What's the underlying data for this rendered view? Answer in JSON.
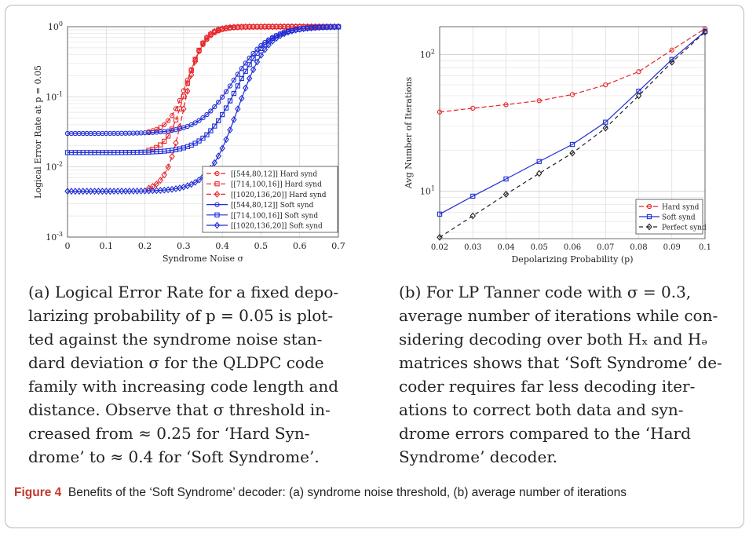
{
  "chart_data": [
    {
      "type": "line",
      "ylabel": "Logical Error Rate at p = 0.05",
      "xlabel": "Syndrome Noise σ",
      "xlim": [
        0,
        0.7
      ],
      "ylim": [
        0.001,
        1
      ],
      "yscale": "log",
      "x_ticks": [
        "0",
        "0.1",
        "0.2",
        "0.3",
        "0.4",
        "0.5",
        "0.6",
        "0.7"
      ],
      "y_ticks": [
        "10^-3",
        "10^-2",
        "10^-1",
        "10^0"
      ],
      "grid": true,
      "legend_position": "lower-right",
      "x": [
        0.0,
        0.02,
        0.04,
        0.06,
        0.08,
        0.1,
        0.12,
        0.14,
        0.16,
        0.18,
        0.2,
        0.22,
        0.24,
        0.26,
        0.28,
        0.3,
        0.32,
        0.34,
        0.36,
        0.38,
        0.4,
        0.42,
        0.44,
        0.46,
        0.48,
        0.5,
        0.52,
        0.54,
        0.56,
        0.58,
        0.6,
        0.62,
        0.64,
        0.66,
        0.68,
        0.7
      ],
      "series": [
        {
          "name": "[[544,80,12]] Hard synd",
          "color": "#e8262b",
          "dash": "6,3",
          "marker": "circle",
          "mode": "sigmoid",
          "base": 0.03,
          "mid": 0.31,
          "k": 40,
          "xstart": 0.21
        },
        {
          "name": "[[714,100,16]] Hard synd",
          "color": "#e8262b",
          "dash": "6,3",
          "marker": "square",
          "mode": "sigmoid",
          "base": 0.016,
          "mid": 0.305,
          "k": 42,
          "xstart": 0.21
        },
        {
          "name": "[[1020,136,20]] Hard synd",
          "color": "#e8262b",
          "dash": "6,3",
          "marker": "diamond",
          "mode": "sigmoid",
          "base": 0.0045,
          "mid": 0.3,
          "k": 44,
          "xstart": 0.21
        },
        {
          "name": "[[544,80,12]] Soft synd",
          "color": "#1f2dd6",
          "dash": "",
          "marker": "circle",
          "mode": "sigmoid",
          "base": 0.03,
          "mid": 0.43,
          "k": 22,
          "xstart": 0.0
        },
        {
          "name": "[[714,100,16]] Soft synd",
          "color": "#1f2dd6",
          "dash": "",
          "marker": "square",
          "mode": "sigmoid",
          "base": 0.016,
          "mid": 0.435,
          "k": 24,
          "xstart": 0.0
        },
        {
          "name": "[[1020,136,20]] Soft synd",
          "color": "#1f2dd6",
          "dash": "",
          "marker": "diamond",
          "mode": "sigmoid",
          "base": 0.0045,
          "mid": 0.44,
          "k": 26,
          "xstart": 0.0
        }
      ]
    },
    {
      "type": "line",
      "ylabel": "Avg Number of Iterations",
      "xlabel": "Depolarizing Probability (p)",
      "yscale": "log",
      "ylim": [
        4.5,
        160
      ],
      "xlim": [
        0.02,
        0.1
      ],
      "x": [
        0.02,
        0.03,
        0.04,
        0.05,
        0.06,
        0.07,
        0.08,
        0.09,
        0.1
      ],
      "x_ticks": [
        "0.02",
        "0.03",
        "0.04",
        "0.05",
        "0.06",
        "0.07",
        "0.08",
        "0.09",
        "0.1"
      ],
      "y_ticks": [
        "10^1",
        "10^2"
      ],
      "grid": true,
      "legend_position": "lower-right",
      "series": [
        {
          "name": "Hard synd",
          "color": "#e8262b",
          "dash": "6,3",
          "marker": "circle",
          "values": [
            38,
            40.5,
            43,
            46,
            51,
            60,
            75,
            108,
            155
          ]
        },
        {
          "name": "Soft synd",
          "color": "#1f2dd6",
          "dash": "",
          "marker": "square",
          "values": [
            6.8,
            9.2,
            12.3,
            16.5,
            22,
            32,
            54,
            92,
            148
          ]
        },
        {
          "name": "Perfect synd",
          "color": "#222222",
          "dash": "5,4",
          "marker": "diamond",
          "values": [
            4.6,
            6.6,
            9.5,
            13.5,
            19,
            29,
            50,
            88,
            146
          ]
        }
      ]
    }
  ],
  "captions": {
    "a": [
      "(a) Logical Error Rate for a fixed depo-",
      "larizing probability of p = 0.05 is plot-",
      "ted against the syndrome noise stan-",
      "dard deviation σ for the QLDPC code",
      "family with increasing code length and",
      "distance. Observe that σ threshold in-",
      "creased from ≈ 0.25 for ‘Hard Syn-",
      "drome’ to ≈ 0.4 for ‘Soft Syndrome’."
    ],
    "b": [
      "(b) For LP Tanner code with σ = 0.3,",
      "average number of iterations while con-",
      "sidering decoding over both Hₓ and Hₔ",
      "matrices shows that ‘Soft Syndrome’ de-",
      "coder requires far less decoding iter-",
      "ations to correct both data and syn-",
      "drome errors compared to the ‘Hard",
      "Syndrome’ decoder."
    ]
  },
  "figure": {
    "label": "Figure 4",
    "text": "Benefits of the ‘Soft Syndrome’ decoder: (a) syndrome noise threshold, (b) average number of iterations"
  }
}
